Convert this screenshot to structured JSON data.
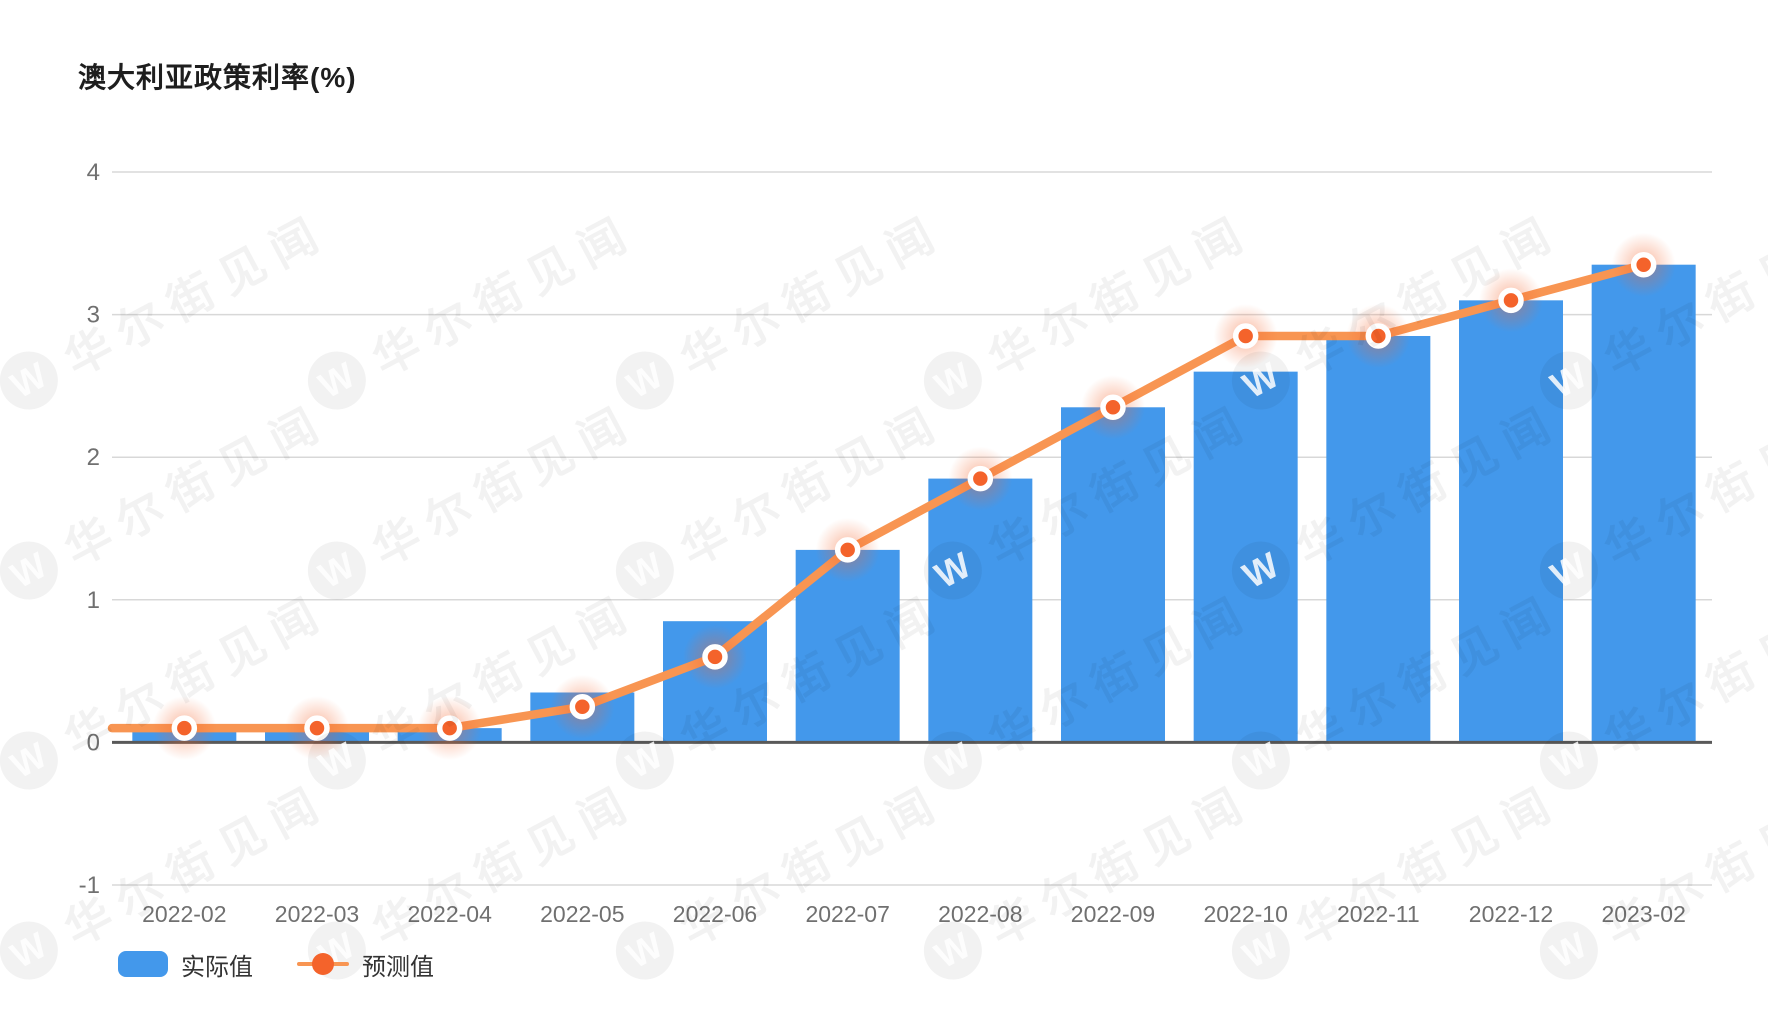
{
  "title": "澳大利亚政策利率(%)",
  "watermark": {
    "logo_letter": "W",
    "text": "华尔街见闻"
  },
  "legend": [
    {
      "label": "实际值",
      "type": "bar"
    },
    {
      "label": "预测值",
      "type": "line"
    }
  ],
  "colors": {
    "bar": "#4398eb",
    "line": "#f89552",
    "marker": "#f4632b",
    "marker_ring": "#ffffff",
    "grid": "#d8d8d8",
    "zero_axis": "#595959",
    "axis_label": "#707070",
    "title": "#1e1e1e",
    "legend_label": "#333333"
  },
  "chart_data": {
    "type": "bar",
    "title": "澳大利亚政策利率(%)",
    "xlabel": "",
    "ylabel": "",
    "ylim": [
      -1,
      4
    ],
    "yticks": [
      4,
      3,
      2,
      1,
      0,
      -1
    ],
    "grid": true,
    "legend_position": "bottom-left",
    "categories": [
      "2022-02",
      "2022-03",
      "2022-04",
      "2022-05",
      "2022-06",
      "2022-07",
      "2022-08",
      "2022-09",
      "2022-10",
      "2022-11",
      "2022-12",
      "2023-02"
    ],
    "series": [
      {
        "name": "实际值",
        "type": "bar",
        "values": [
          0.1,
          0.1,
          0.1,
          0.35,
          0.85,
          1.35,
          1.85,
          2.35,
          2.6,
          2.85,
          3.1,
          3.35
        ]
      },
      {
        "name": "预测值",
        "type": "line",
        "values": [
          0.1,
          0.1,
          0.1,
          0.25,
          0.6,
          1.35,
          1.85,
          2.35,
          2.85,
          2.85,
          3.1,
          3.35
        ]
      }
    ]
  }
}
